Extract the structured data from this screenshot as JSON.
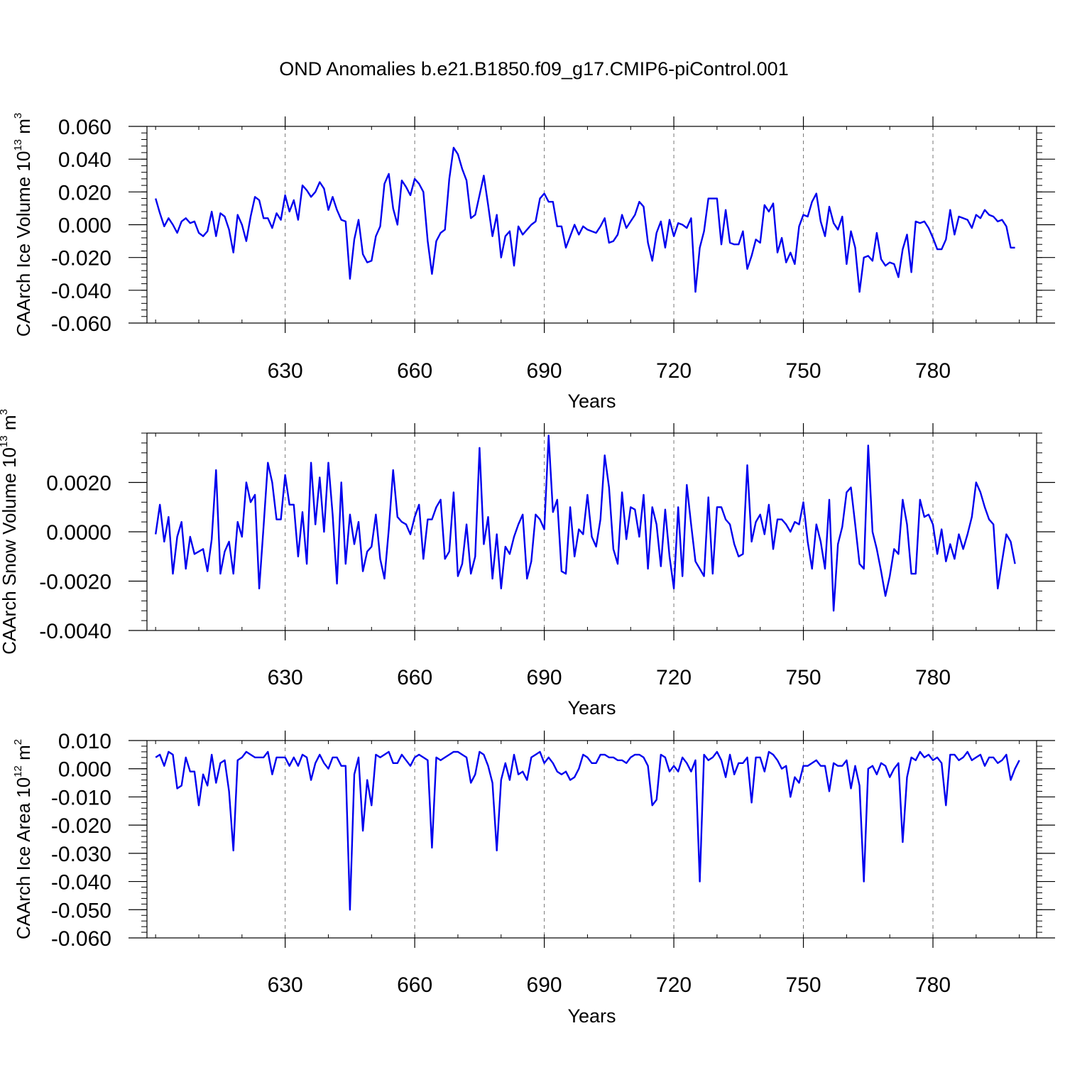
{
  "title": "OND Anomalies b.e21.B1850.f09_g17.CMIP6-piControl.001",
  "chart_data": [
    {
      "type": "line",
      "name": "caarch-ice-volume",
      "ylabel": "CAArch Ice Volume",
      "yunit_base": "10",
      "yunit_exp": "13",
      "yunit_m": "m",
      "yunit_mexp": "3",
      "xlabel": "Years",
      "xlim": [
        598,
        804
      ],
      "ylim": [
        -0.06,
        0.06
      ],
      "xticks": [
        630,
        660,
        690,
        720,
        750,
        780
      ],
      "xtick_labels": [
        "630",
        "660",
        "690",
        "720",
        "750",
        "780"
      ],
      "yticks": [
        -0.06,
        -0.04,
        -0.02,
        0.0,
        0.02,
        0.04,
        0.06
      ],
      "ytick_labels": [
        "-0.060",
        "-0.040",
        "-0.020",
        "0.000",
        "0.020",
        "0.040",
        "0.060"
      ],
      "line_color": "#0000ee",
      "x_start": 600,
      "values": [
        0.016,
        0.007,
        -0.001,
        0.004,
        0.0,
        -0.005,
        0.002,
        0.004,
        0.001,
        0.002,
        -0.005,
        -0.007,
        -0.004,
        0.008,
        -0.007,
        0.007,
        0.005,
        -0.003,
        -0.017,
        0.006,
        0.0,
        -0.01,
        0.005,
        0.017,
        0.015,
        0.004,
        0.004,
        -0.002,
        0.007,
        0.003,
        0.018,
        0.008,
        0.015,
        0.003,
        0.024,
        0.021,
        0.017,
        0.02,
        0.026,
        0.022,
        0.009,
        0.017,
        0.009,
        0.003,
        0.002,
        -0.033,
        -0.009,
        0.003,
        -0.018,
        -0.023,
        -0.022,
        -0.007,
        -0.001,
        0.025,
        0.031,
        0.01,
        0.0,
        0.027,
        0.023,
        0.018,
        0.028,
        0.025,
        0.02,
        -0.01,
        -0.03,
        -0.01,
        -0.005,
        -0.003,
        0.028,
        0.047,
        0.043,
        0.034,
        0.027,
        0.004,
        0.006,
        0.018,
        0.03,
        0.012,
        -0.007,
        0.006,
        -0.02,
        -0.007,
        -0.004,
        -0.025,
        -0.001,
        -0.006,
        -0.003,
        0.0,
        0.002,
        0.016,
        0.019,
        0.014,
        0.014,
        -0.001,
        -0.001,
        -0.014,
        -0.007,
        0.0,
        -0.006,
        -0.001,
        -0.003,
        -0.004,
        -0.005,
        -0.001,
        0.004,
        -0.011,
        -0.01,
        -0.006,
        0.006,
        -0.002,
        0.002,
        0.006,
        0.014,
        0.011,
        -0.011,
        -0.022,
        -0.005,
        0.002,
        -0.014,
        0.003,
        -0.007,
        0.001,
        0.0,
        -0.002,
        0.004,
        -0.041,
        -0.014,
        -0.004,
        0.016,
        0.016,
        0.016,
        -0.012,
        0.009,
        -0.011,
        -0.012,
        -0.012,
        -0.004,
        -0.027,
        -0.019,
        -0.009,
        -0.011,
        0.012,
        0.008,
        0.013,
        -0.017,
        -0.008,
        -0.023,
        -0.017,
        -0.024,
        -0.001,
        0.006,
        0.005,
        0.014,
        0.019,
        0.002,
        -0.007,
        0.011,
        0.001,
        -0.003,
        0.005,
        -0.024,
        -0.004,
        -0.014,
        -0.041,
        -0.02,
        -0.019,
        -0.022,
        -0.005,
        -0.021,
        -0.025,
        -0.023,
        -0.024,
        -0.032,
        -0.015,
        -0.006,
        -0.029,
        0.002,
        0.001,
        0.002,
        -0.002,
        -0.008,
        -0.015,
        -0.015,
        -0.009,
        0.009,
        -0.006,
        0.005,
        0.004,
        0.003,
        -0.002,
        0.006,
        0.004,
        0.009,
        0.006,
        0.005,
        0.002,
        0.003,
        -0.001,
        -0.014,
        -0.014
      ]
    },
    {
      "type": "line",
      "name": "caarch-snow-volume",
      "ylabel": "CAArch Snow Volume",
      "yunit_base": "10",
      "yunit_exp": "13",
      "yunit_m": "m",
      "yunit_mexp": "3",
      "xlabel": "Years",
      "xlim": [
        598,
        804
      ],
      "ylim": [
        -0.004,
        0.004
      ],
      "xticks": [
        630,
        660,
        690,
        720,
        750,
        780
      ],
      "xtick_labels": [
        "630",
        "660",
        "690",
        "720",
        "750",
        "780"
      ],
      "yticks": [
        -0.004,
        -0.002,
        0.0,
        0.002
      ],
      "ytick_labels": [
        "-0.0040",
        "-0.0020",
        "0.0000",
        "0.0020"
      ],
      "line_color": "#0000ee",
      "x_start": 600,
      "values": [
        -0.0001,
        0.0011,
        -0.0004,
        0.0006,
        -0.0017,
        -0.0002,
        0.0004,
        -0.0015,
        -0.0002,
        -0.0009,
        -0.0008,
        -0.0007,
        -0.0016,
        -0.0003,
        0.0025,
        -0.0017,
        -0.0008,
        -0.0004,
        -0.0017,
        0.0004,
        -0.0002,
        0.002,
        0.0012,
        0.0015,
        -0.0023,
        0.0002,
        0.0028,
        0.002,
        0.0005,
        0.0005,
        0.0023,
        0.0011,
        0.0011,
        -0.001,
        0.0008,
        -0.0013,
        0.0028,
        0.0003,
        0.0022,
        0.0,
        0.0028,
        0.0007,
        -0.0021,
        0.002,
        -0.0013,
        0.0007,
        -0.0005,
        0.0004,
        -0.0016,
        -0.0008,
        -0.0006,
        0.0007,
        -0.0011,
        -0.0019,
        0.0001,
        0.0025,
        0.0006,
        0.0004,
        0.0003,
        -0.0001,
        0.0006,
        0.0011,
        -0.0011,
        0.0005,
        0.0005,
        0.001,
        0.0013,
        -0.0011,
        -0.0008,
        0.0016,
        -0.0018,
        -0.0013,
        0.0003,
        -0.0017,
        -0.001,
        0.0034,
        -0.0005,
        0.0006,
        -0.0019,
        -0.0001,
        -0.0023,
        -0.0006,
        -0.0009,
        -0.0002,
        0.0003,
        0.0007,
        -0.0019,
        -0.0012,
        0.0007,
        0.0005,
        0.0001,
        0.0039,
        0.0008,
        0.0013,
        -0.0016,
        -0.0017,
        0.001,
        -0.001,
        0.0001,
        -0.0001,
        0.0015,
        -0.0002,
        -0.0006,
        0.0005,
        0.0031,
        0.0018,
        -0.0007,
        -0.0013,
        0.0016,
        -0.0003,
        0.001,
        0.0009,
        -0.0002,
        0.0015,
        -0.0015,
        0.001,
        0.0003,
        -0.0014,
        0.0009,
        -0.001,
        -0.0023,
        0.001,
        -0.0018,
        0.0019,
        0.0003,
        -0.0012,
        -0.0015,
        -0.0018,
        0.0014,
        -0.0017,
        0.001,
        0.001,
        0.0005,
        0.0003,
        -0.0005,
        -0.001,
        -0.0009,
        0.0027,
        -0.0004,
        0.0004,
        0.0007,
        -0.0001,
        0.0011,
        -0.0007,
        0.0005,
        0.0005,
        0.0003,
        0.0,
        0.0004,
        0.0003,
        0.0012,
        -0.0004,
        -0.0015,
        0.0003,
        -0.0004,
        -0.0015,
        0.0013,
        -0.0032,
        -0.0005,
        0.0002,
        0.0016,
        0.0018,
        0.0003,
        -0.0013,
        -0.0015,
        0.0035,
        0.0,
        -0.0007,
        -0.0016,
        -0.0026,
        -0.0018,
        -0.0007,
        -0.0009,
        0.0013,
        0.0003,
        -0.0017,
        -0.0017,
        0.0013,
        0.0006,
        0.0007,
        0.0003,
        -0.0009,
        0.0001,
        -0.0012,
        -0.0005,
        -0.0011,
        -0.0001,
        -0.0007,
        -0.0001,
        0.0006,
        0.002,
        0.0016,
        0.001,
        0.0005,
        0.0003,
        -0.0023,
        -0.0012,
        -0.0001,
        -0.0004,
        -0.0013
      ]
    },
    {
      "type": "line",
      "name": "caarch-ice-area",
      "ylabel": "CAArch Ice Area",
      "yunit_base": "10",
      "yunit_exp": "12",
      "yunit_m": "m",
      "yunit_mexp": "2",
      "xlabel": "Years",
      "xlim": [
        598,
        804
      ],
      "ylim": [
        -0.06,
        0.01
      ],
      "xticks": [
        630,
        660,
        690,
        720,
        750,
        780
      ],
      "xtick_labels": [
        "630",
        "660",
        "690",
        "720",
        "750",
        "780"
      ],
      "yticks": [
        -0.06,
        -0.05,
        -0.04,
        -0.03,
        -0.02,
        -0.01,
        0.0,
        0.01
      ],
      "ytick_labels": [
        "-0.060",
        "-0.050",
        "-0.040",
        "-0.030",
        "-0.020",
        "-0.010",
        "0.000",
        "0.010"
      ],
      "line_color": "#0000ee",
      "x_start": 600,
      "values": [
        0.004,
        0.005,
        0.001,
        0.006,
        0.005,
        -0.007,
        -0.006,
        0.004,
        -0.001,
        -0.001,
        -0.013,
        -0.002,
        -0.006,
        0.005,
        -0.005,
        0.002,
        0.003,
        -0.008,
        -0.029,
        0.003,
        0.004,
        0.006,
        0.005,
        0.004,
        0.004,
        0.004,
        0.006,
        -0.002,
        0.004,
        0.004,
        0.004,
        0.001,
        0.004,
        0.001,
        0.005,
        0.004,
        -0.004,
        0.002,
        0.005,
        0.002,
        0.0,
        0.004,
        0.004,
        0.001,
        0.001,
        -0.05,
        -0.002,
        0.004,
        -0.022,
        -0.004,
        -0.013,
        0.005,
        0.004,
        0.005,
        0.006,
        0.002,
        0.002,
        0.005,
        0.003,
        0.001,
        0.004,
        0.005,
        0.004,
        0.003,
        -0.028,
        0.004,
        0.003,
        0.004,
        0.005,
        0.006,
        0.006,
        0.005,
        0.004,
        -0.005,
        -0.002,
        0.006,
        0.005,
        0.001,
        -0.005,
        -0.029,
        -0.004,
        0.002,
        -0.004,
        0.005,
        -0.002,
        -0.001,
        -0.004,
        0.004,
        0.005,
        0.006,
        0.002,
        0.004,
        0.002,
        -0.001,
        -0.002,
        -0.001,
        -0.004,
        -0.003,
        0.0,
        0.005,
        0.004,
        0.002,
        0.002,
        0.005,
        0.005,
        0.004,
        0.004,
        0.003,
        0.003,
        0.002,
        0.004,
        0.005,
        0.005,
        0.004,
        0.001,
        -0.013,
        -0.011,
        0.005,
        0.004,
        -0.001,
        0.001,
        -0.001,
        0.004,
        0.002,
        -0.001,
        0.003,
        -0.04,
        0.005,
        0.003,
        0.004,
        0.006,
        0.003,
        -0.003,
        0.005,
        -0.002,
        0.002,
        0.002,
        0.004,
        -0.012,
        0.004,
        0.004,
        -0.001,
        0.006,
        0.005,
        0.003,
        0.0,
        0.001,
        -0.01,
        -0.003,
        -0.005,
        0.001,
        0.001,
        0.002,
        0.003,
        0.001,
        0.001,
        -0.008,
        0.002,
        0.001,
        0.001,
        0.003,
        -0.007,
        0.001,
        -0.006,
        -0.04,
        0.0,
        0.001,
        -0.002,
        0.002,
        0.001,
        -0.003,
        0.0,
        0.002,
        -0.026,
        -0.003,
        0.004,
        0.003,
        0.006,
        0.004,
        0.005,
        0.003,
        0.004,
        0.002,
        -0.013,
        0.005,
        0.005,
        0.003,
        0.004,
        0.006,
        0.003,
        0.004,
        0.005,
        0.001,
        0.004,
        0.004,
        0.002,
        0.003,
        0.005,
        -0.004,
        0.0,
        0.003
      ]
    }
  ]
}
